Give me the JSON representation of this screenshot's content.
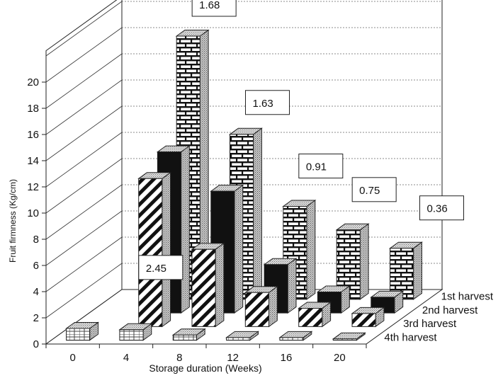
{
  "chart_data": {
    "type": "bar",
    "subtype": "3d-grouped",
    "xlabel": "Storage duration (Weeks)",
    "ylabel": "Fruit firmness (Kg/cm)",
    "ylim": [
      0,
      20
    ],
    "yticks": [
      "0",
      "2",
      "4",
      "6",
      "8",
      "10",
      "12",
      "14",
      "16",
      "18",
      "20"
    ],
    "categories": [
      "0",
      "4",
      "8",
      "12",
      "16",
      "20"
    ],
    "series": [
      {
        "name": "1st harvest",
        "pattern": "brick",
        "values": [
          0,
          20.1,
          12.6,
          7.1,
          5.3,
          3.9
        ]
      },
      {
        "name": "2nd harvest",
        "pattern": "solid",
        "values": [
          0,
          12.3,
          9.3,
          3.7,
          1.6,
          1.2
        ]
      },
      {
        "name": "3rd harvest",
        "pattern": "diagonal",
        "values": [
          0,
          11.3,
          5.9,
          2.6,
          1.4,
          1.0
        ]
      },
      {
        "name": "4th harvest",
        "pattern": "grid",
        "values": [
          0.9,
          0.8,
          0.4,
          0.2,
          0.2,
          0.1
        ]
      }
    ],
    "annotations": [
      "2.45",
      "1.68",
      "1.63",
      "0.91",
      "0.75",
      "0.36"
    ],
    "grid": true,
    "colors": {
      "solid": "#111111",
      "face": "#ffffff",
      "top": "#d8d8d8",
      "side": "#c4c4c4"
    }
  }
}
